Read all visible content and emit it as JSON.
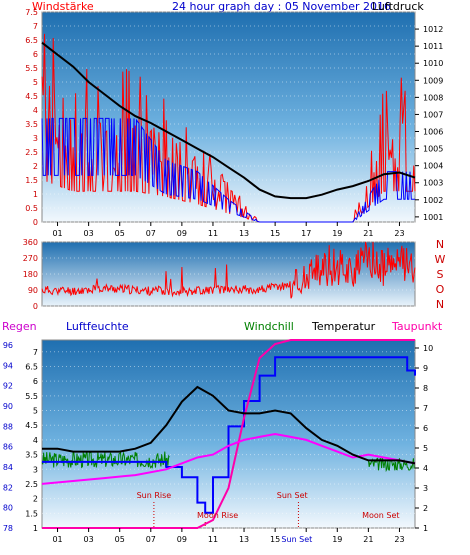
{
  "header": {
    "left_title": "Windstärke",
    "center_title": "24 hour graph day : 05 November 2016",
    "right_title": "Luftdruck"
  },
  "lower_header": {
    "regen": "Regen",
    "luftfeuchte": "Luftfeuchte",
    "windchill": "Windchill",
    "temperatur": "Temperatur",
    "taupunkt": "Taupunkt"
  },
  "compass": [
    "N",
    "W",
    "S",
    "O",
    "N"
  ],
  "colors": {
    "wind_gust": "#ff0000",
    "wind_avg": "#0000ff",
    "pressure": "#000000",
    "direction": "#ff0000",
    "humidity": "#0000ff",
    "windchill": "#008000",
    "temperature": "#000000",
    "dewpoint": "#ff00ff",
    "rain": "#ff00aa"
  },
  "chart_data": [
    {
      "type": "line",
      "name": "wind-pressure",
      "x_ticks": [
        "01",
        "03",
        "05",
        "07",
        "09",
        "11",
        "13",
        "15",
        "17",
        "19",
        "21",
        "23"
      ],
      "y_left_ticks": [
        "0",
        "0.5",
        "1",
        "1.5",
        "2",
        "2.5",
        "3",
        "3.5",
        "4",
        "4.5",
        "5",
        "5.5",
        "6",
        "6.5",
        "7",
        "7.5"
      ],
      "y_left_range": [
        0,
        7.5
      ],
      "y_right_ticks": [
        "1001",
        "1002",
        "1003",
        "1004",
        "1005",
        "1006",
        "1007",
        "1008",
        "1009",
        "1010",
        "1011",
        "1012"
      ],
      "y_right_range": [
        1000.7,
        1013
      ],
      "pressure_hpa": {
        "x": [
          0,
          1,
          2,
          3,
          4,
          5,
          6,
          7,
          8,
          9,
          10,
          11,
          12,
          13,
          14,
          15,
          16,
          17,
          18,
          19,
          20,
          21,
          22,
          23,
          24
        ],
        "y": [
          1011.2,
          1010.5,
          1009.8,
          1008.9,
          1008.2,
          1007.5,
          1006.9,
          1006.5,
          1006.0,
          1005.5,
          1005.0,
          1004.5,
          1003.9,
          1003.3,
          1002.6,
          1002.2,
          1002.1,
          1002.1,
          1002.3,
          1002.6,
          1002.8,
          1003.1,
          1003.5,
          1003.6,
          1003.3
        ]
      },
      "wind_gust_max": {
        "x": [
          0,
          2,
          4,
          6,
          8,
          10,
          12,
          14,
          16,
          18,
          20,
          22,
          24
        ],
        "y": [
          7.5,
          5.5,
          5.5,
          5.5,
          4.5,
          3.2,
          1.5,
          0.0,
          0.0,
          0.0,
          0.0,
          5.5,
          5.5
        ]
      },
      "wind_avg_max": {
        "x": [
          0,
          2,
          4,
          6,
          8,
          10,
          12,
          14,
          16,
          18,
          20,
          22,
          24
        ],
        "y": [
          3.7,
          3.7,
          3.7,
          3.7,
          2.2,
          1.8,
          0.8,
          0.0,
          0.0,
          0.0,
          0.0,
          1.8,
          1.8
        ]
      }
    },
    {
      "type": "line",
      "name": "wind-direction",
      "y_ticks": [
        "0",
        "90",
        "180",
        "270",
        "360"
      ],
      "y_range": [
        0,
        360
      ],
      "x": [
        0,
        2,
        4,
        6,
        8,
        10,
        12,
        14,
        16,
        17,
        18,
        19,
        20,
        21,
        22,
        23,
        24
      ],
      "y": [
        90,
        85,
        100,
        90,
        80,
        88,
        95,
        92,
        120,
        150,
        200,
        230,
        200,
        240,
        210,
        250,
        230
      ]
    },
    {
      "type": "line",
      "name": "temp-humidity",
      "humidity_ticks": [
        "78",
        "80",
        "82",
        "84",
        "86",
        "88",
        "90",
        "92",
        "94",
        "96"
      ],
      "humidity_range": [
        78,
        96.5
      ],
      "temp_ticks": [
        "1",
        "1.5",
        "2",
        "2.5",
        "3",
        "3.5",
        "4",
        "4.5",
        "5",
        "5.5",
        "6",
        "6.5",
        "7"
      ],
      "temp_range": [
        1,
        7.4
      ],
      "right_ticks": [
        "1",
        "2",
        "3",
        "4",
        "5",
        "6",
        "7",
        "8",
        "9",
        "10"
      ],
      "right_range": [
        1,
        10.4
      ],
      "annotations": [
        "Sun Rise",
        "Moon Rise",
        "Sun Set",
        "Moon Set"
      ],
      "x_ticks_special": "Sun Set",
      "temperature": {
        "x": [
          0,
          1,
          2,
          3,
          4,
          5,
          6,
          7,
          8,
          9,
          10,
          11,
          12,
          13,
          14,
          15,
          16,
          17,
          18,
          19,
          20,
          21,
          22,
          23,
          24
        ],
        "y": [
          3.7,
          3.7,
          3.6,
          3.6,
          3.6,
          3.6,
          3.7,
          3.9,
          4.5,
          5.3,
          5.8,
          5.5,
          5.0,
          4.9,
          4.9,
          5.0,
          4.9,
          4.4,
          4.0,
          3.8,
          3.5,
          3.3,
          3.3,
          3.3,
          3.2
        ]
      },
      "windchill": {
        "x": [
          0,
          1,
          2,
          3,
          4,
          5,
          6,
          7,
          8,
          24
        ],
        "y": [
          3.4,
          3.3,
          3.3,
          3.3,
          3.2,
          3.2,
          3.3,
          3.4,
          3.5,
          3.0
        ]
      },
      "humidity": {
        "x": [
          0,
          2,
          4,
          6,
          7,
          8,
          9,
          10,
          10.5,
          11,
          12,
          13,
          14,
          15,
          16,
          17,
          18,
          19,
          20,
          21,
          22,
          23,
          23.5,
          24
        ],
        "y": [
          84.5,
          84.5,
          84.5,
          84.5,
          84.5,
          84.0,
          83.0,
          80.5,
          79.5,
          83.0,
          88.0,
          90.5,
          93.0,
          94.8,
          94.8,
          94.8,
          94.8,
          94.8,
          94.8,
          94.8,
          94.8,
          94.8,
          93.5,
          93.0
        ]
      },
      "dewpoint": {
        "x": [
          0,
          2,
          4,
          6,
          8,
          10,
          11,
          12,
          13,
          14,
          15,
          16,
          17,
          18,
          19,
          20,
          21,
          22,
          23,
          24
        ],
        "y": [
          2.5,
          2.6,
          2.7,
          2.8,
          3.0,
          3.4,
          3.5,
          3.8,
          4.0,
          4.1,
          4.2,
          4.1,
          4.0,
          3.8,
          3.6,
          3.4,
          3.5,
          3.4,
          3.3,
          3.2
        ]
      },
      "rain_right": {
        "x": [
          0,
          10,
          11,
          12,
          13,
          14,
          15,
          16,
          17,
          24
        ],
        "y": [
          1,
          1,
          1.4,
          3.0,
          6.5,
          9.5,
          10.2,
          10.4,
          10.4,
          10.4
        ]
      }
    }
  ]
}
